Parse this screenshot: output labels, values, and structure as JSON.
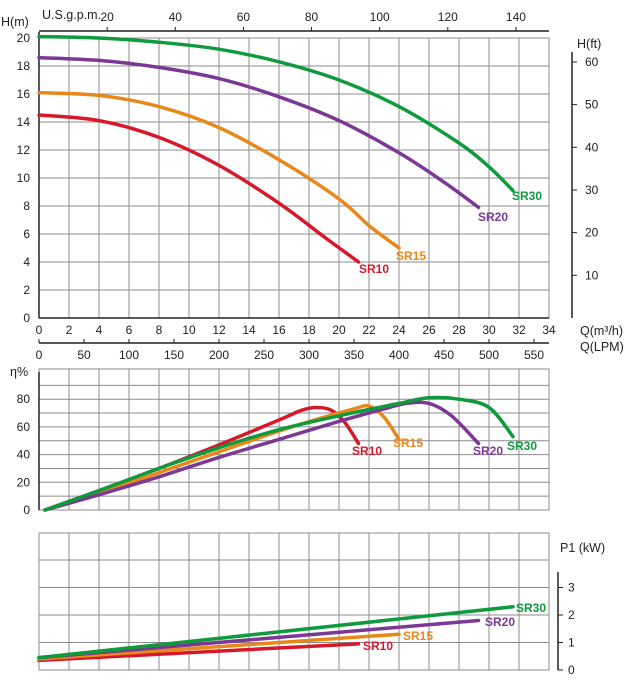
{
  "colors": {
    "SR10": "#d7182a",
    "SR15": "#e8871a",
    "SR20": "#7b3894",
    "SR30": "#0f9a3e",
    "grid": "#8c8c8c",
    "axis": "#222222"
  },
  "labels": {
    "usgpm": "U.S.g.p.m.",
    "h_m": "H(m)",
    "h_ft": "H(ft)",
    "q_m3h": "Q(m³/h)",
    "q_lpm": "Q(LPM)",
    "eta": "η%",
    "p1": "P1 (kW)"
  },
  "chart_data": [
    {
      "type": "line",
      "panel": "head",
      "xlabel": "Q(m³/h)",
      "ylabel": "H(m)",
      "xlim": [
        0,
        34
      ],
      "ylim": [
        0,
        21
      ],
      "x_ticks": [
        0,
        2,
        4,
        6,
        8,
        10,
        12,
        14,
        16,
        18,
        20,
        22,
        24,
        26,
        28,
        30,
        32,
        34
      ],
      "y_ticks": [
        0,
        2,
        4,
        6,
        8,
        10,
        12,
        14,
        16,
        18,
        20
      ],
      "secondary_top": {
        "label": "U.S.g.p.m.",
        "ticks": [
          20,
          40,
          60,
          80,
          100,
          120,
          140
        ]
      },
      "secondary_right": {
        "label": "H(ft)",
        "ticks": [
          10,
          20,
          30,
          40,
          50,
          60
        ]
      },
      "secondary_bottom": {
        "label": "Q(LPM)",
        "ticks": [
          0,
          50,
          100,
          150,
          200,
          250,
          300,
          350,
          400,
          450,
          500,
          550
        ]
      },
      "series": [
        {
          "name": "SR10",
          "x": [
            0,
            4,
            8,
            12,
            16,
            19,
            21.3
          ],
          "y": [
            14.5,
            14.1,
            12.9,
            10.9,
            8.2,
            5.8,
            4.0
          ]
        },
        {
          "name": "SR15",
          "x": [
            0,
            4,
            8,
            12,
            16,
            20,
            22,
            24
          ],
          "y": [
            16.1,
            15.9,
            15.1,
            13.6,
            11.3,
            8.5,
            6.6,
            5.0
          ]
        },
        {
          "name": "SR20",
          "x": [
            0,
            4,
            8,
            12,
            16,
            20,
            24,
            27,
            29.3
          ],
          "y": [
            18.6,
            18.4,
            17.9,
            17.1,
            15.8,
            14.1,
            11.8,
            9.7,
            7.9
          ]
        },
        {
          "name": "SR30",
          "x": [
            0,
            4,
            8,
            12,
            16,
            20,
            24,
            28,
            30,
            31.6
          ],
          "y": [
            20.1,
            20.0,
            19.7,
            19.2,
            18.3,
            17.0,
            15.1,
            12.5,
            10.8,
            9.1
          ]
        }
      ]
    },
    {
      "type": "line",
      "panel": "efficiency",
      "ylabel": "η%",
      "xlim": [
        0,
        34
      ],
      "ylim": [
        0,
        90
      ],
      "y_ticks": [
        0,
        20,
        40,
        60,
        80
      ],
      "series": [
        {
          "name": "SR10",
          "x": [
            0.4,
            4,
            8,
            12,
            16,
            17.5,
            18.5,
            19.5,
            20.4,
            21.3
          ],
          "y": [
            0,
            14,
            30,
            47,
            65,
            72,
            74,
            72,
            63,
            48
          ]
        },
        {
          "name": "SR15",
          "x": [
            0.4,
            4,
            8,
            12,
            16,
            19,
            21,
            22,
            23,
            24
          ],
          "y": [
            0,
            12,
            27,
            42,
            57,
            67,
            73,
            75,
            67,
            51
          ]
        },
        {
          "name": "SR20",
          "x": [
            0.4,
            4,
            8,
            12,
            16,
            20,
            23,
            24.5,
            26,
            27.5,
            29.3
          ],
          "y": [
            0,
            11,
            24,
            38,
            51,
            64,
            73,
            77,
            77,
            68,
            48
          ]
        },
        {
          "name": "SR30",
          "x": [
            0.4,
            4,
            8,
            12,
            16,
            20,
            24,
            26,
            28,
            30,
            31.6
          ],
          "y": [
            0,
            14,
            30,
            45,
            58,
            68,
            77,
            81,
            80,
            74,
            53
          ]
        }
      ]
    },
    {
      "type": "line",
      "panel": "power",
      "ylabel": "P1 (kW)",
      "xlim": [
        0,
        34
      ],
      "ylim": [
        0,
        4
      ],
      "y_ticks": [
        0,
        1,
        2,
        3
      ],
      "series": [
        {
          "name": "SR10",
          "x": [
            0,
            21.3
          ],
          "y": [
            0.35,
            0.95
          ]
        },
        {
          "name": "SR15",
          "x": [
            0,
            24
          ],
          "y": [
            0.4,
            1.3
          ]
        },
        {
          "name": "SR20",
          "x": [
            0,
            29.3
          ],
          "y": [
            0.45,
            1.8
          ]
        },
        {
          "name": "SR30",
          "x": [
            0,
            31.6
          ],
          "y": [
            0.45,
            2.3
          ]
        }
      ]
    }
  ]
}
